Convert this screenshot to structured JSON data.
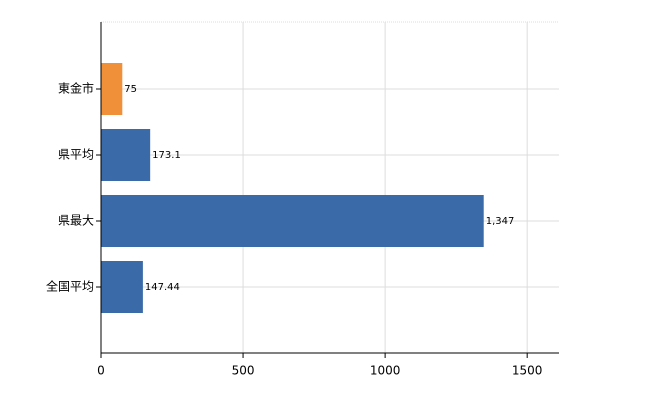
{
  "chart_data": {
    "type": "barh",
    "categories": [
      "東金市",
      "県平均",
      "県最大",
      "全国平均"
    ],
    "values": [
      75,
      173.1,
      1347,
      147.44
    ],
    "value_labels": [
      "75",
      "173.1",
      "1,347",
      "147.44"
    ],
    "colors": [
      "#f0913a",
      "#3a6aa8",
      "#3a6aa8",
      "#3a6aa8"
    ],
    "xlim": [
      0,
      1612
    ],
    "xticks": [
      0,
      500,
      1000,
      1500
    ],
    "grid": true
  }
}
